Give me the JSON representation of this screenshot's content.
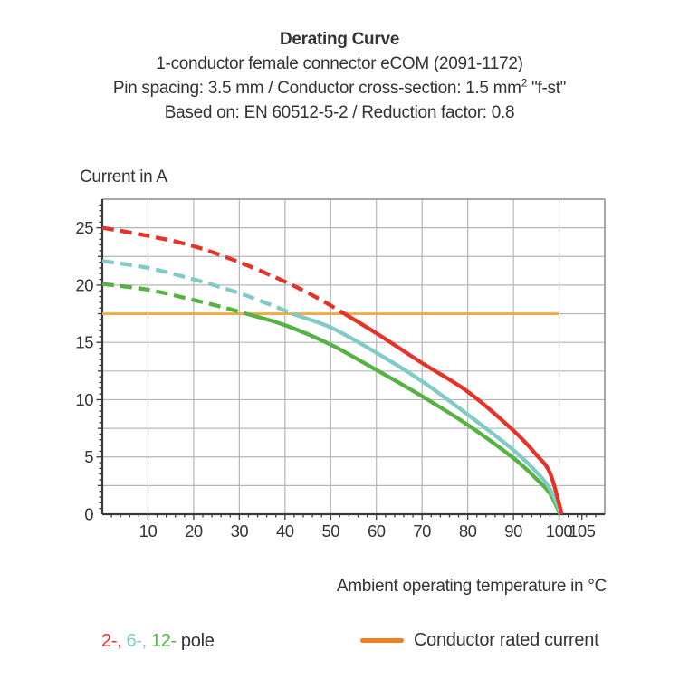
{
  "header": {
    "title": "Derating Curve",
    "line2": "1-conductor female connector eCOM (2091-1172)",
    "line3_prefix": "Pin spacing: 3.5 mm / Conductor cross-section: 1.5 mm",
    "line3_sup": "2",
    "line3_suffix": " \"f-st\"",
    "line4": "Based on: EN 60512-5-2 / Reduction factor: 0.8"
  },
  "chart_data": {
    "type": "line",
    "title": "Derating Curve",
    "xlabel": "Ambient operating temperature in °C",
    "ylabel": "Current in A",
    "xlim": [
      0,
      110
    ],
    "ylim": [
      0,
      27.5
    ],
    "x_major_ticks": [
      10,
      20,
      30,
      40,
      50,
      60,
      70,
      80,
      90,
      100,
      105
    ],
    "y_major_ticks": [
      0,
      5,
      10,
      15,
      20,
      25
    ],
    "x_grid_step": 10,
    "y_grid_step": 2.5,
    "x_minor_step": 2,
    "y_minor_step": 0.5,
    "grid_on": true,
    "grid_color": "#b5b5b5",
    "frame_color": "#9e9e9e",
    "axis_color": "#3a3a3a",
    "tick_label_color": "#333333",
    "rated_current": {
      "label": "Conductor rated current",
      "value": 17.5,
      "x_start": 0,
      "x_end": 100,
      "color": "#f6a93f"
    },
    "series": [
      {
        "name": "12-pole",
        "color": "#56b243",
        "dashed_points": [
          [
            0,
            20.1
          ],
          [
            10,
            19.6
          ],
          [
            20,
            18.7
          ],
          [
            27,
            18.0
          ],
          [
            31.5,
            17.5
          ]
        ],
        "solid_points": [
          [
            31.5,
            17.5
          ],
          [
            40,
            16.5
          ],
          [
            50,
            14.8
          ],
          [
            60,
            12.6
          ],
          [
            70,
            10.3
          ],
          [
            80,
            7.8
          ],
          [
            90,
            4.9
          ],
          [
            95,
            3.1
          ],
          [
            98,
            1.8
          ],
          [
            100.2,
            0
          ]
        ]
      },
      {
        "name": "6-pole",
        "color": "#80cbc6",
        "dashed_points": [
          [
            0,
            22.1
          ],
          [
            10,
            21.5
          ],
          [
            20,
            20.5
          ],
          [
            30,
            19.3
          ],
          [
            38,
            18.1
          ],
          [
            41.5,
            17.5
          ]
        ],
        "solid_points": [
          [
            41.5,
            17.5
          ],
          [
            50,
            16.3
          ],
          [
            60,
            14.1
          ],
          [
            70,
            11.6
          ],
          [
            80,
            8.7
          ],
          [
            90,
            5.6
          ],
          [
            95,
            3.7
          ],
          [
            98,
            2.2
          ],
          [
            100.4,
            0
          ]
        ]
      },
      {
        "name": "2-pole",
        "color": "#e6332a",
        "dashed_points": [
          [
            0,
            25.0
          ],
          [
            10,
            24.3
          ],
          [
            20,
            23.4
          ],
          [
            30,
            22.0
          ],
          [
            40,
            20.3
          ],
          [
            47,
            18.9
          ],
          [
            53,
            17.5
          ]
        ],
        "solid_points": [
          [
            53,
            17.5
          ],
          [
            60,
            15.8
          ],
          [
            70,
            13.2
          ],
          [
            80,
            10.7
          ],
          [
            90,
            7.3
          ],
          [
            95,
            5.2
          ],
          [
            98,
            3.6
          ],
          [
            100.6,
            0
          ]
        ]
      }
    ]
  },
  "legend": {
    "poles": [
      {
        "label": "2-,",
        "color": "#e6332a"
      },
      {
        "label": "6-,",
        "color": "#80cbc6"
      },
      {
        "label": "12-",
        "color": "#56b243"
      }
    ],
    "poles_suffix": "pole",
    "rated_label": "Conductor rated current",
    "rated_color": "#ee7f22"
  }
}
